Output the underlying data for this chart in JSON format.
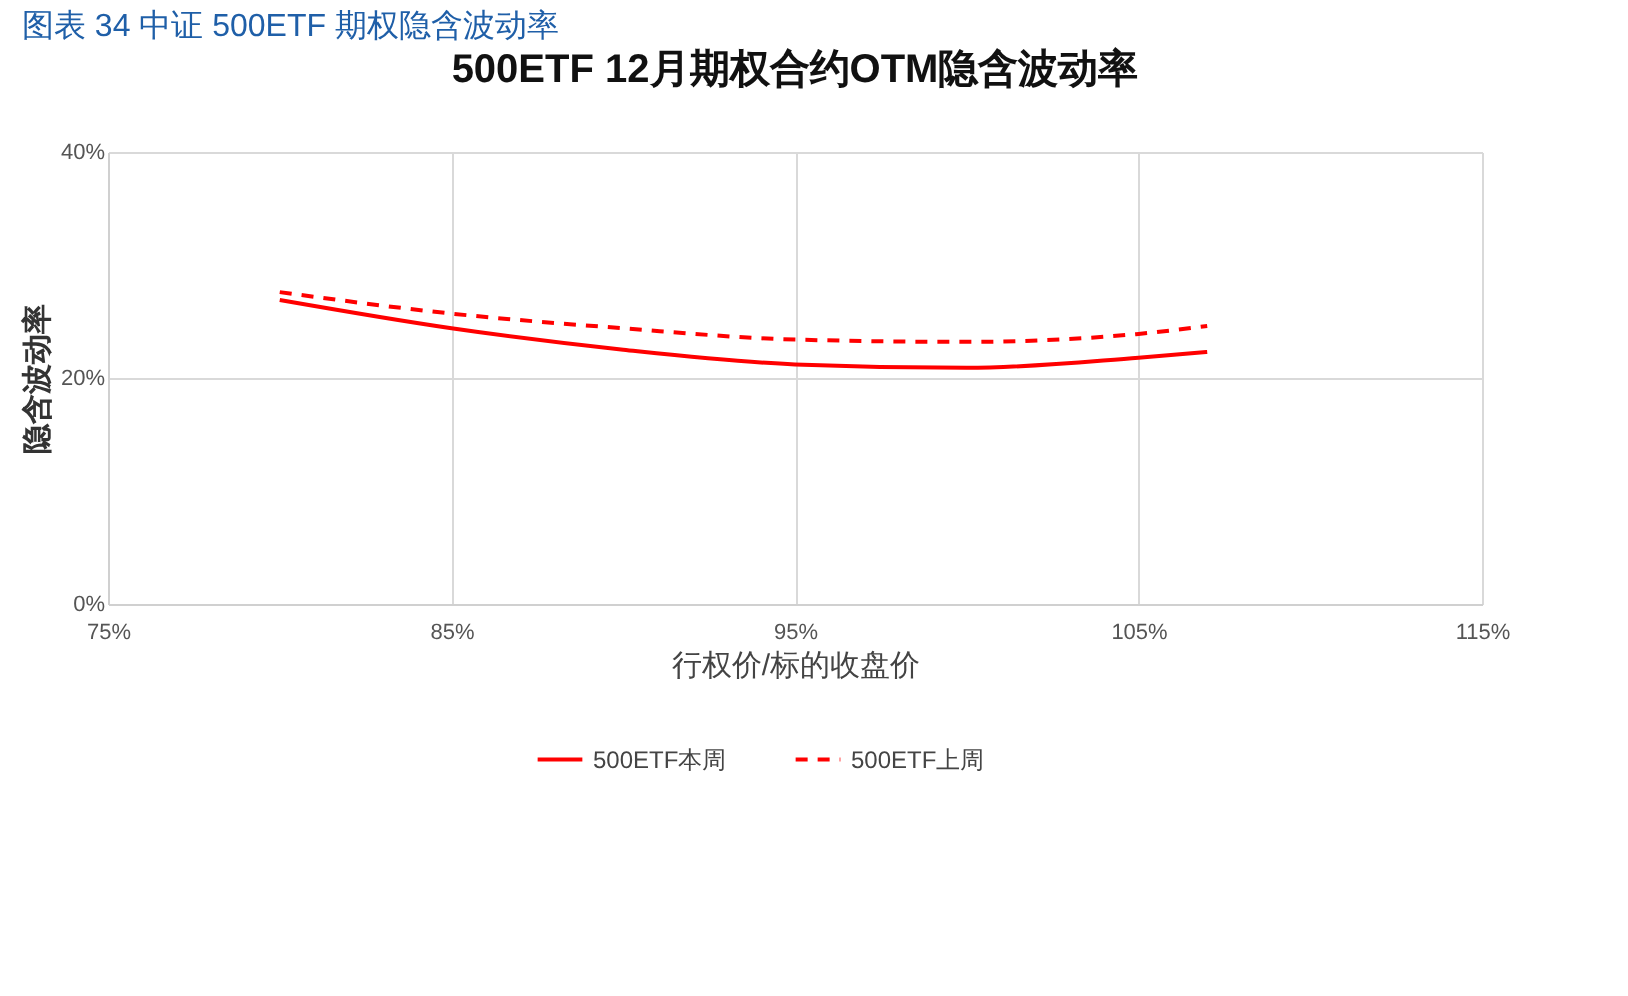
{
  "chart_data": {
    "type": "line",
    "title": "图表 34  中证 500ETF 期权隐含波动率",
    "subtitle": "500ETF  12月期权合约OTM隐含波动率",
    "xlabel": "行权价/标的收盘价",
    "ylabel": "隐含波动率",
    "x": [
      80,
      85,
      90,
      95,
      100,
      105,
      107
    ],
    "series": [
      {
        "name": "500ETF本周",
        "color": "#ff0000",
        "line_style": "solid",
        "values": [
          26.9,
          24.4,
          22.5,
          21.2,
          20.9,
          21.8,
          22.3
        ]
      },
      {
        "name": "500ETF上周",
        "color": "#ff0000",
        "line_style": "dashed",
        "values": [
          27.6,
          25.7,
          24.4,
          23.4,
          23.2,
          23.9,
          24.6
        ]
      }
    ],
    "xlim": [
      75,
      115
    ],
    "xticks": [
      {
        "value": 75,
        "label": "75%"
      },
      {
        "value": 85,
        "label": "85%"
      },
      {
        "value": 95,
        "label": "95%"
      },
      {
        "value": 105,
        "label": "105%"
      },
      {
        "value": 115,
        "label": "115%"
      }
    ],
    "ylim": [
      0,
      40
    ],
    "yticks": [
      {
        "value": 0,
        "label": "0%"
      },
      {
        "value": 20,
        "label": "20%"
      },
      {
        "value": 40,
        "label": "40%"
      }
    ],
    "grid": true,
    "legend": "bottom",
    "marker": "none"
  }
}
